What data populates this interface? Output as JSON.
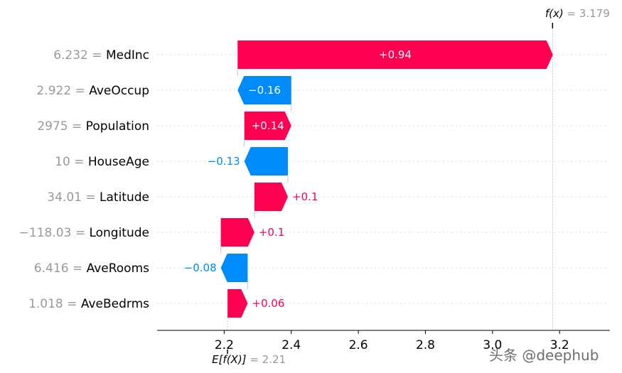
{
  "chart_data": {
    "type": "waterfall",
    "base_value": 2.21,
    "final_value": 3.179,
    "base_label_text": "2.21",
    "final_label_text": "3.179",
    "xlim": [
      2.0,
      3.35
    ],
    "xticks": [
      2.2,
      2.4,
      2.6,
      2.8,
      3.0,
      3.2
    ],
    "xtick_labels": [
      "2.2",
      "2.4",
      "2.6",
      "2.8",
      "3.0",
      "3.2"
    ],
    "features": [
      {
        "value": "6.232",
        "name": "MedInc",
        "contribution": 0.94,
        "label": "+0.94"
      },
      {
        "value": "2.922",
        "name": "AveOccup",
        "contribution": -0.16,
        "label": "−0.16"
      },
      {
        "value": "2975",
        "name": "Population",
        "contribution": 0.14,
        "label": "+0.14"
      },
      {
        "value": "10",
        "name": "HouseAge",
        "contribution": -0.13,
        "label": "−0.13"
      },
      {
        "value": "34.01",
        "name": "Latitude",
        "contribution": 0.1,
        "label": "+0.1"
      },
      {
        "value": "−118.03",
        "name": "Longitude",
        "contribution": 0.1,
        "label": "+0.1"
      },
      {
        "value": "6.416",
        "name": "AveRooms",
        "contribution": -0.08,
        "label": "−0.08"
      },
      {
        "value": "1.018",
        "name": "AveBedrms",
        "contribution": 0.06,
        "label": "+0.06"
      }
    ],
    "colors": {
      "positive": "#ff0051",
      "negative": "#008bfb",
      "muted": "#999999"
    }
  },
  "labels": {
    "fx_prefix": "f(x)",
    "efx_prefix": "E[f(X)]",
    "equals": " = "
  },
  "watermark": "头条 @deephub"
}
